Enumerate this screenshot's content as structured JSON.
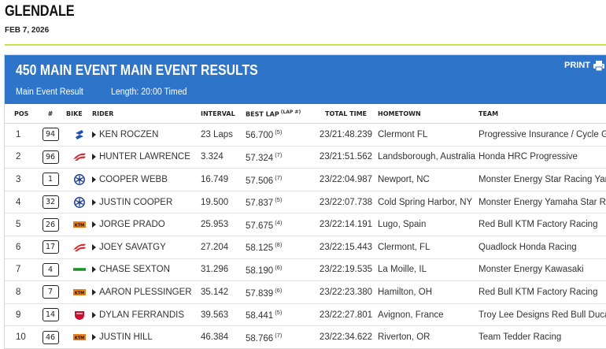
{
  "event": {
    "title": "GLENDALE",
    "date": "FEB 7, 2026"
  },
  "banner": {
    "title": "450 MAIN EVENT MAIN EVENT RESULTS",
    "print_label": "PRINT",
    "result_label": "Main Event Result",
    "length_label": "Length: 20:00 Timed"
  },
  "table": {
    "headers": {
      "pos": "POS",
      "num": "#",
      "bike": "BIKE",
      "rider": "RIDER",
      "interval": "INTERVAL",
      "best_lap": "BEST LAP",
      "lap_note": "(LAP #)",
      "total_time": "TOTAL TIME",
      "hometown": "HOMETOWN",
      "team": "TEAM"
    },
    "rows": [
      {
        "pos": "1",
        "num": "94",
        "bike": "suzuki-logo-icon",
        "rider": "KEN ROCZEN",
        "interval": "23 Laps",
        "best_lap": "56.700",
        "lap": "(5)",
        "total": "23/21:48.239",
        "hometown": "Clermont FL",
        "team": "Progressive Insurance / Cycle Gear"
      },
      {
        "pos": "2",
        "num": "96",
        "bike": "honda-logo-icon",
        "rider": "HUNTER LAWRENCE",
        "interval": "3.324",
        "best_lap": "57.324",
        "lap": "(7)",
        "total": "23/21:51.562",
        "hometown": "Landsborough, Australia",
        "team": "Honda HRC Progressive"
      },
      {
        "pos": "3",
        "num": "1",
        "bike": "yamaha-logo-icon",
        "rider": "COOPER WEBB",
        "interval": "16.749",
        "best_lap": "57.506",
        "lap": "(7)",
        "total": "23/22:04.987",
        "hometown": "Newport, NC",
        "team": "Monster Energy Star Racing Yamaha"
      },
      {
        "pos": "4",
        "num": "32",
        "bike": "yamaha-logo-icon",
        "rider": "JUSTIN COOPER",
        "interval": "19.500",
        "best_lap": "57.837",
        "lap": "(5)",
        "total": "23/22:07.738",
        "hometown": "Cold Spring Harbor, NY",
        "team": "Monster Energy Yamaha Star Racing"
      },
      {
        "pos": "5",
        "num": "26",
        "bike": "ktm-logo-icon",
        "rider": "JORGE PRADO",
        "interval": "25.953",
        "best_lap": "57.675",
        "lap": "(4)",
        "total": "23/22:14.191",
        "hometown": "Lugo, Spain",
        "team": "Red Bull KTM Factory Racing"
      },
      {
        "pos": "6",
        "num": "17",
        "bike": "honda-logo-icon",
        "rider": "JOEY SAVATGY",
        "interval": "27.204",
        "best_lap": "58.125",
        "lap": "(8)",
        "total": "23/22:15.443",
        "hometown": "Clermont, FL",
        "team": "Quadlock Honda Racing"
      },
      {
        "pos": "7",
        "num": "4",
        "bike": "kawasaki-logo-icon",
        "rider": "CHASE SEXTON",
        "interval": "31.296",
        "best_lap": "58.190",
        "lap": "(6)",
        "total": "23/22:19.535",
        "hometown": "La Moille, IL",
        "team": "Monster Energy Kawasaki"
      },
      {
        "pos": "8",
        "num": "7",
        "bike": "ktm-logo-icon",
        "rider": "AARON PLESSINGER",
        "interval": "35.142",
        "best_lap": "57.839",
        "lap": "(6)",
        "total": "23/22:23.380",
        "hometown": "Hamilton, OH",
        "team": "Red Bull KTM Factory Racing"
      },
      {
        "pos": "9",
        "num": "14",
        "bike": "ducati-logo-icon",
        "rider": "DYLAN FERRANDIS",
        "interval": "39.563",
        "best_lap": "58.441",
        "lap": "(5)",
        "total": "23/22:27.801",
        "hometown": "Avignon, France",
        "team": "Troy Lee Designs Red Bull Ducati Factory"
      },
      {
        "pos": "10",
        "num": "46",
        "bike": "ktm-logo-icon",
        "rider": "JUSTIN HILL",
        "interval": "46.384",
        "best_lap": "58.766",
        "lap": "(7)",
        "total": "23/22:34.622",
        "hometown": "Riverton, OR",
        "team": "Team Tedder Racing"
      }
    ]
  },
  "colors": {
    "banner": "#2e74c8",
    "accent_line": "#c7e34a",
    "suzuki": "#1f4fb3",
    "honda": "#d8232a",
    "yamaha": "#1a3c8f",
    "ktm": "#ef7d16",
    "kawasaki": "#39b54a",
    "ducati": "#c8102e"
  }
}
